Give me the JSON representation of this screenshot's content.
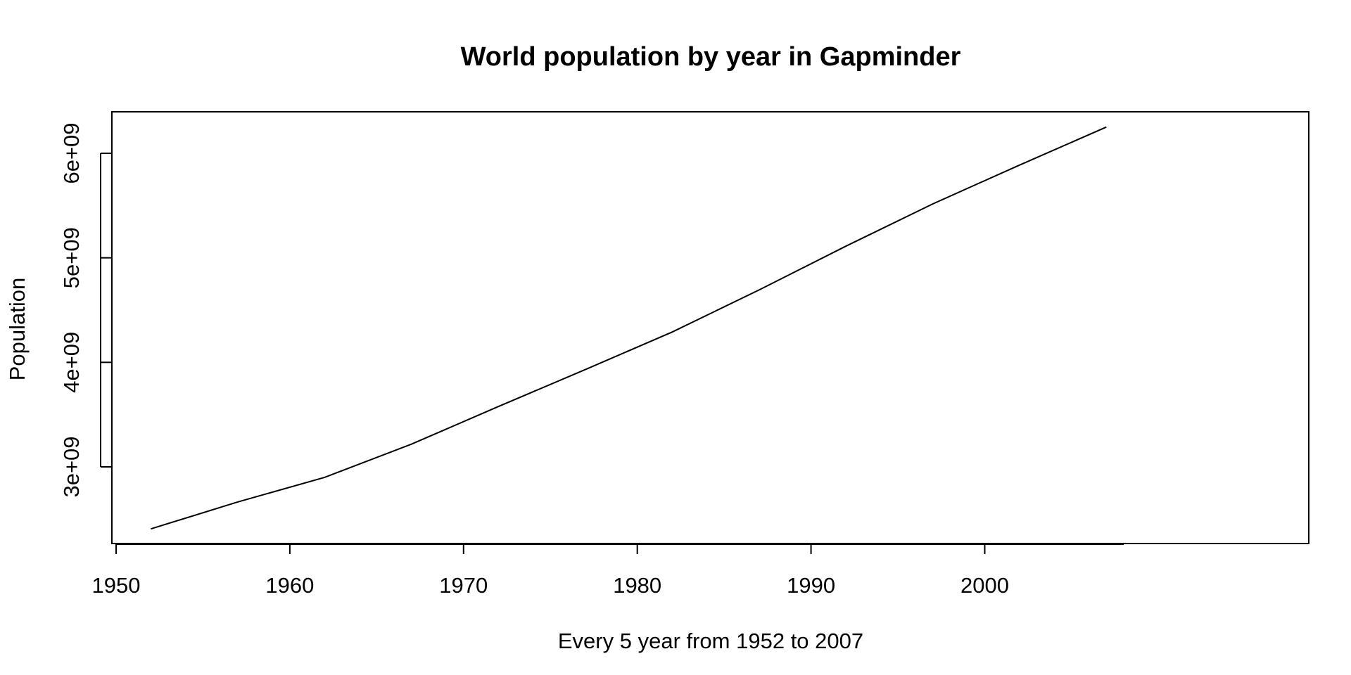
{
  "chart_data": {
    "type": "line",
    "title": "World population by year in Gapminder",
    "xlabel": "Every 5 year from 1952 to 2007",
    "ylabel": "Population",
    "x": [
      1952,
      1957,
      1962,
      1967,
      1972,
      1977,
      1982,
      1987,
      1992,
      1997,
      2002,
      2007
    ],
    "series": [
      {
        "values": [
          2406957150,
          2664404580,
          2899782974,
          3217478384,
          3576977158,
          3930045807,
          4289436840,
          4691477418,
          5110710260,
          5515204472,
          5886977579,
          6251013179
        ]
      }
    ],
    "xlim": [
      1950,
      2009
    ],
    "ylim": [
      2400000000,
      6400000000
    ],
    "xticks": [
      {
        "value": 1950,
        "label": "1950"
      },
      {
        "value": 1960,
        "label": "1960"
      },
      {
        "value": 1970,
        "label": "1970"
      },
      {
        "value": 1980,
        "label": "1980"
      },
      {
        "value": 1990,
        "label": "1990"
      },
      {
        "value": 2000,
        "label": "2000"
      }
    ],
    "yticks": [
      {
        "value": 3000000000,
        "label": "3e+09"
      },
      {
        "value": 4000000000,
        "label": "4e+09"
      },
      {
        "value": 5000000000,
        "label": "5e+09"
      },
      {
        "value": 6000000000,
        "label": "6e+09"
      }
    ],
    "grid": false,
    "legend": "none",
    "line_color": "#000000"
  }
}
